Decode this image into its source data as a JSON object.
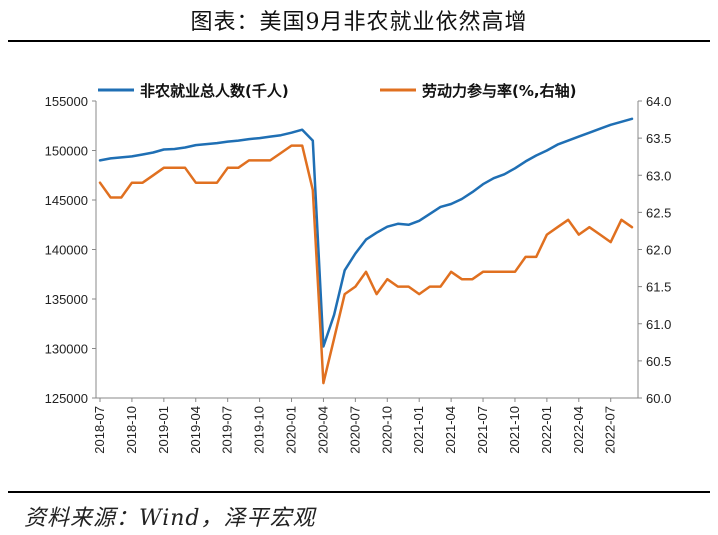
{
  "header": {
    "title": "图表：美国9月非农就业依然高增"
  },
  "footer": {
    "source": "资料来源：Wind，泽平宏观"
  },
  "chart_data": {
    "type": "line",
    "title": "图表：美国9月非农就业依然高增",
    "legend_placement": "top",
    "grid": false,
    "x_tick_labels": [
      "2018-07",
      "2018-10",
      "2019-01",
      "2019-04",
      "2019-07",
      "2019-10",
      "2020-01",
      "2020-04",
      "2020-07",
      "2020-10",
      "2021-01",
      "2021-04",
      "2021-07",
      "2021-10",
      "2022-01",
      "2022-04",
      "2022-07"
    ],
    "y_left": {
      "min": 125000,
      "max": 155000,
      "step": 5000,
      "ticks": [
        "125000",
        "130000",
        "135000",
        "140000",
        "145000",
        "150000",
        "155000"
      ]
    },
    "y_right": {
      "min": 60.0,
      "max": 64.0,
      "step": 0.5,
      "ticks": [
        "60.0",
        "60.5",
        "61.0",
        "61.5",
        "62.0",
        "62.5",
        "63.0",
        "63.5",
        "64.0"
      ]
    },
    "series": [
      {
        "name": "非农就业总人数(千人)",
        "axis": "left",
        "color": "#1F6FB4",
        "x": [
          "2018-07",
          "2018-08",
          "2018-09",
          "2018-10",
          "2018-11",
          "2018-12",
          "2019-01",
          "2019-02",
          "2019-03",
          "2019-04",
          "2019-05",
          "2019-06",
          "2019-07",
          "2019-08",
          "2019-09",
          "2019-10",
          "2019-11",
          "2019-12",
          "2020-01",
          "2020-02",
          "2020-03",
          "2020-04",
          "2020-05",
          "2020-06",
          "2020-07",
          "2020-08",
          "2020-09",
          "2020-10",
          "2020-11",
          "2020-12",
          "2021-01",
          "2021-02",
          "2021-03",
          "2021-04",
          "2021-05",
          "2021-06",
          "2021-07",
          "2021-08",
          "2021-09",
          "2021-10",
          "2021-11",
          "2021-12",
          "2022-01",
          "2022-02",
          "2022-03",
          "2022-04",
          "2022-05",
          "2022-06",
          "2022-07",
          "2022-08",
          "2022-09"
        ],
        "values": [
          149000,
          149200,
          149300,
          149400,
          149600,
          149800,
          150100,
          150150,
          150300,
          150550,
          150650,
          150750,
          150900,
          151000,
          151150,
          151250,
          151400,
          151550,
          151800,
          152100,
          151000,
          130200,
          133400,
          137900,
          139600,
          141000,
          141700,
          142300,
          142600,
          142500,
          142900,
          143600,
          144300,
          144600,
          145100,
          145800,
          146600,
          147200,
          147600,
          148200,
          148900,
          149500,
          150000,
          150600,
          151000,
          151400,
          151800,
          152200,
          152600,
          152900,
          153200
        ]
      },
      {
        "name": "劳动力参与率(%,右轴)",
        "axis": "right",
        "color": "#E07020",
        "x": [
          "2018-07",
          "2018-08",
          "2018-09",
          "2018-10",
          "2018-11",
          "2018-12",
          "2019-01",
          "2019-02",
          "2019-03",
          "2019-04",
          "2019-05",
          "2019-06",
          "2019-07",
          "2019-08",
          "2019-09",
          "2019-10",
          "2019-11",
          "2019-12",
          "2020-01",
          "2020-02",
          "2020-03",
          "2020-04",
          "2020-05",
          "2020-06",
          "2020-07",
          "2020-08",
          "2020-09",
          "2020-10",
          "2020-11",
          "2020-12",
          "2021-01",
          "2021-02",
          "2021-03",
          "2021-04",
          "2021-05",
          "2021-06",
          "2021-07",
          "2021-08",
          "2021-09",
          "2021-10",
          "2021-11",
          "2021-12",
          "2022-01",
          "2022-02",
          "2022-03",
          "2022-04",
          "2022-05",
          "2022-06",
          "2022-07",
          "2022-08",
          "2022-09"
        ],
        "values": [
          62.9,
          62.7,
          62.7,
          62.9,
          62.9,
          63.0,
          63.1,
          63.1,
          63.1,
          62.9,
          62.9,
          62.9,
          63.1,
          63.1,
          63.2,
          63.2,
          63.2,
          63.3,
          63.4,
          63.4,
          62.8,
          60.2,
          60.8,
          61.4,
          61.5,
          61.7,
          61.4,
          61.6,
          61.5,
          61.5,
          61.4,
          61.5,
          61.5,
          61.7,
          61.6,
          61.6,
          61.7,
          61.7,
          61.7,
          61.7,
          61.9,
          61.9,
          62.2,
          62.3,
          62.4,
          62.2,
          62.3,
          62.2,
          62.1,
          62.4,
          62.3
        ]
      }
    ]
  }
}
